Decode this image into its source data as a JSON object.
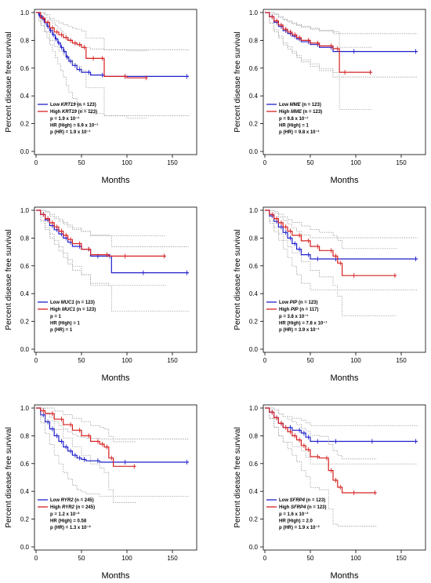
{
  "colors": {
    "low": "#1f1fcc",
    "high": "#d62020",
    "ci": "#8a8a8a"
  },
  "chart_data": [
    {
      "type": "line",
      "xlabel": "Months",
      "ylabel": "Percent disease free survival",
      "xlim": [
        0,
        175
      ],
      "ylim": [
        0,
        1
      ],
      "xticks": [
        "0",
        "50",
        "100",
        "150"
      ],
      "yticks": [
        "0.0",
        "0.2",
        "0.4",
        "0.6",
        "0.8",
        "1.0"
      ],
      "legend": [
        {
          "prefix": "Low ",
          "gene": "KRT19",
          "suffix": " (n = 123)"
        },
        {
          "prefix": "High ",
          "gene": "KRT19",
          "suffix": " (n = 123)"
        }
      ],
      "stats": [
        "p = 1.9 x 10⁻¹",
        "HR (High) = 6.9 x 10⁻¹",
        "p (HR) = 1.9 x 10⁻¹"
      ],
      "series": [
        {
          "name": "Low KRT19",
          "color": "low",
          "x": [
            0,
            3,
            6,
            9,
            12,
            15,
            18,
            21,
            24,
            27,
            30,
            33,
            36,
            40,
            45,
            50,
            60,
            75,
            100,
            168
          ],
          "y": [
            1.0,
            0.98,
            0.96,
            0.93,
            0.9,
            0.87,
            0.84,
            0.81,
            0.78,
            0.75,
            0.72,
            0.68,
            0.65,
            0.62,
            0.59,
            0.57,
            0.55,
            0.54,
            0.54,
            0.54
          ]
        },
        {
          "name": "High KRT19",
          "color": "high",
          "x": [
            0,
            5,
            10,
            15,
            20,
            25,
            30,
            35,
            40,
            45,
            50,
            55,
            65,
            75,
            100,
            123
          ],
          "y": [
            1.0,
            0.96,
            0.93,
            0.89,
            0.86,
            0.84,
            0.82,
            0.8,
            0.78,
            0.77,
            0.75,
            0.67,
            0.67,
            0.54,
            0.53,
            0.53
          ]
        }
      ]
    },
    {
      "type": "line",
      "xlabel": "Months",
      "ylabel": "Percent disease free survival",
      "xlim": [
        0,
        175
      ],
      "ylim": [
        0,
        1
      ],
      "xticks": [
        "0",
        "50",
        "100",
        "150"
      ],
      "yticks": [
        "0.0",
        "0.2",
        "0.4",
        "0.6",
        "0.8",
        "1.0"
      ],
      "legend": [
        {
          "prefix": "Low ",
          "gene": "MME",
          "suffix": " (n = 123)"
        },
        {
          "prefix": "High ",
          "gene": "MME",
          "suffix": " (n = 123)"
        }
      ],
      "stats": [
        "p = 9.8 x 10⁻¹",
        "HR (High) = 1",
        "p (HR) = 9.8 x 10⁻¹"
      ],
      "series": [
        {
          "name": "Low MME",
          "color": "low",
          "x": [
            0,
            5,
            10,
            15,
            20,
            25,
            30,
            35,
            40,
            50,
            60,
            75,
            100,
            168
          ],
          "y": [
            1.0,
            0.97,
            0.93,
            0.9,
            0.87,
            0.85,
            0.83,
            0.81,
            0.79,
            0.77,
            0.75,
            0.72,
            0.72,
            0.72
          ]
        },
        {
          "name": "High MME",
          "color": "high",
          "x": [
            0,
            5,
            10,
            15,
            20,
            25,
            30,
            35,
            40,
            50,
            60,
            75,
            82,
            90,
            118
          ],
          "y": [
            1.0,
            0.97,
            0.94,
            0.91,
            0.88,
            0.86,
            0.84,
            0.82,
            0.8,
            0.78,
            0.76,
            0.74,
            0.57,
            0.57,
            0.57
          ]
        }
      ]
    },
    {
      "type": "line",
      "xlabel": "Months",
      "ylabel": "Percent disease free survival",
      "xlim": [
        0,
        175
      ],
      "ylim": [
        0,
        1
      ],
      "xticks": [
        "0",
        "50",
        "100",
        "150"
      ],
      "yticks": [
        "0.0",
        "0.2",
        "0.4",
        "0.6",
        "0.8",
        "1.0"
      ],
      "legend": [
        {
          "prefix": "Low ",
          "gene": "MUC1",
          "suffix": " (n = 123)"
        },
        {
          "prefix": "High ",
          "gene": "MUC1",
          "suffix": " (n = 123)"
        }
      ],
      "stats": [
        "p = 1",
        "HR (High) = 1",
        "p (HR) = 1"
      ],
      "series": [
        {
          "name": "Low MUC1",
          "color": "low",
          "x": [
            0,
            5,
            10,
            15,
            20,
            25,
            30,
            35,
            40,
            50,
            60,
            70,
            83,
            120,
            168
          ],
          "y": [
            1.0,
            0.97,
            0.93,
            0.89,
            0.86,
            0.83,
            0.8,
            0.77,
            0.74,
            0.72,
            0.67,
            0.67,
            0.55,
            0.55,
            0.55
          ]
        },
        {
          "name": "High MUC1",
          "color": "high",
          "x": [
            0,
            5,
            10,
            15,
            20,
            25,
            30,
            35,
            40,
            50,
            60,
            80,
            100,
            143
          ],
          "y": [
            1.0,
            0.97,
            0.94,
            0.91,
            0.88,
            0.85,
            0.82,
            0.79,
            0.76,
            0.72,
            0.68,
            0.67,
            0.67,
            0.67
          ]
        }
      ]
    },
    {
      "type": "line",
      "xlabel": "Months",
      "ylabel": "Percent disease free survival",
      "xlim": [
        0,
        175
      ],
      "ylim": [
        0,
        1
      ],
      "xticks": [
        "0",
        "50",
        "100",
        "150"
      ],
      "yticks": [
        "0.0",
        "0.2",
        "0.4",
        "0.6",
        "0.8",
        "1.0"
      ],
      "legend": [
        {
          "prefix": "Low ",
          "gene": "PIP",
          "suffix": " (n = 123)"
        },
        {
          "prefix": "High ",
          "gene": "PIP",
          "suffix": " (n = 117)"
        }
      ],
      "stats": [
        "p = 3.8 x 10⁻¹",
        "HR (High) = 7.8 x 10⁻¹",
        "p (HR) = 3.9 x 10⁻¹"
      ],
      "series": [
        {
          "name": "Low PIP",
          "color": "low",
          "x": [
            0,
            5,
            10,
            15,
            20,
            25,
            30,
            35,
            40,
            50,
            60,
            80,
            168
          ],
          "y": [
            1.0,
            0.96,
            0.92,
            0.88,
            0.84,
            0.8,
            0.76,
            0.72,
            0.68,
            0.65,
            0.65,
            0.65,
            0.65
          ]
        },
        {
          "name": "High PIP",
          "color": "high",
          "x": [
            0,
            5,
            10,
            15,
            20,
            25,
            30,
            40,
            50,
            60,
            75,
            80,
            85,
            100,
            145
          ],
          "y": [
            1.0,
            0.97,
            0.94,
            0.91,
            0.88,
            0.85,
            0.82,
            0.78,
            0.74,
            0.71,
            0.67,
            0.62,
            0.53,
            0.53,
            0.53
          ]
        }
      ]
    },
    {
      "type": "line",
      "xlabel": "Months",
      "ylabel": "Percent disease free survival",
      "xlim": [
        0,
        175
      ],
      "ylim": [
        0,
        1
      ],
      "xticks": [
        "0",
        "50",
        "100",
        "150"
      ],
      "yticks": [
        "0.0",
        "0.2",
        "0.4",
        "0.6",
        "0.8",
        "1.0"
      ],
      "legend": [
        {
          "prefix": "Low ",
          "gene": "RYR2",
          "suffix": " (n = 245)"
        },
        {
          "prefix": "High ",
          "gene": "RYR2",
          "suffix": " (n = 245)"
        }
      ],
      "stats": [
        "p = 1.2 x 10⁻²",
        "HR (High) = 0.58",
        "p (HR) = 1.3 x 10⁻²"
      ],
      "series": [
        {
          "name": "Low RYR2",
          "color": "low",
          "x": [
            0,
            5,
            10,
            15,
            20,
            25,
            30,
            35,
            40,
            45,
            50,
            55,
            70,
            100,
            168
          ],
          "y": [
            1.0,
            0.95,
            0.9,
            0.85,
            0.8,
            0.76,
            0.72,
            0.69,
            0.66,
            0.64,
            0.63,
            0.62,
            0.61,
            0.61,
            0.61
          ]
        },
        {
          "name": "High RYR2",
          "color": "high",
          "x": [
            0,
            5,
            10,
            20,
            30,
            40,
            50,
            60,
            70,
            75,
            80,
            85,
            110
          ],
          "y": [
            1.0,
            0.98,
            0.96,
            0.92,
            0.88,
            0.84,
            0.8,
            0.76,
            0.74,
            0.72,
            0.64,
            0.58,
            0.58
          ]
        }
      ]
    },
    {
      "type": "line",
      "xlabel": "Months",
      "ylabel": "Percent disease free survival",
      "xlim": [
        0,
        175
      ],
      "ylim": [
        0,
        1
      ],
      "xticks": [
        "0",
        "50",
        "100",
        "150"
      ],
      "yticks": [
        "0.0",
        "0.2",
        "0.4",
        "0.6",
        "0.8",
        "1.0"
      ],
      "legend": [
        {
          "prefix": "Low ",
          "gene": "SFRP4",
          "suffix": " (n = 123)"
        },
        {
          "prefix": "High ",
          "gene": "SFRP4",
          "suffix": " (n = 123)"
        }
      ],
      "stats": [
        "p = 1.6 x 10⁻³",
        "HR (High) = 2.0",
        "p (HR) = 1.9 x 10⁻³"
      ],
      "series": [
        {
          "name": "Low SFRP4",
          "color": "low",
          "x": [
            0,
            5,
            10,
            15,
            20,
            30,
            40,
            45,
            50,
            60,
            80,
            120,
            168
          ],
          "y": [
            1.0,
            0.97,
            0.93,
            0.89,
            0.86,
            0.84,
            0.82,
            0.79,
            0.76,
            0.76,
            0.76,
            0.76,
            0.76
          ]
        },
        {
          "name": "High SFRP4",
          "color": "high",
          "x": [
            0,
            5,
            10,
            15,
            20,
            25,
            30,
            35,
            40,
            45,
            50,
            60,
            70,
            75,
            80,
            85,
            100,
            123
          ],
          "y": [
            1.0,
            0.97,
            0.93,
            0.89,
            0.86,
            0.83,
            0.8,
            0.77,
            0.73,
            0.7,
            0.65,
            0.64,
            0.55,
            0.48,
            0.43,
            0.39,
            0.39,
            0.39
          ]
        }
      ]
    }
  ]
}
